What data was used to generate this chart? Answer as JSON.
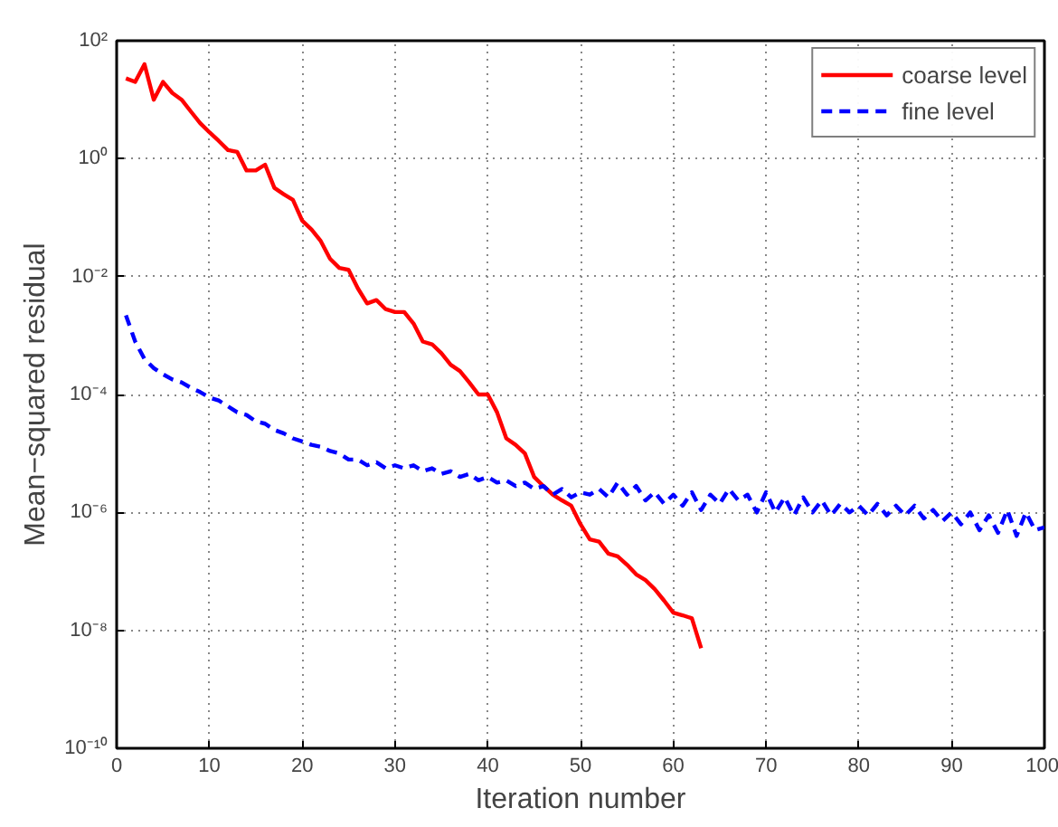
{
  "chart_data": {
    "type": "line",
    "xlabel": "Iteration number",
    "ylabel": "Mean−squared residual",
    "log": "y",
    "grid": true,
    "legend": "top right",
    "xlim": [
      0,
      100
    ],
    "xticks": [
      0,
      10,
      20,
      30,
      40,
      50,
      60,
      70,
      80,
      90,
      100
    ],
    "ylim": [
      1e-10,
      100
    ],
    "yticks": [
      {
        "value": 1e-10,
        "label": "10⁻¹⁰"
      },
      {
        "value": 1e-08,
        "label": "10⁻⁸"
      },
      {
        "value": 1e-06,
        "label": "10⁻⁶"
      },
      {
        "value": 0.0001,
        "label": "10⁻⁴"
      },
      {
        "value": 0.01,
        "label": "10⁻²"
      },
      {
        "value": 1,
        "label": "10⁰"
      },
      {
        "value": 100,
        "label": "10²"
      }
    ],
    "series": [
      {
        "name": "coarse level",
        "color": "#ff0000",
        "line_style": "solid",
        "x": [
          1,
          2,
          3,
          4,
          5,
          6,
          7,
          8,
          9,
          10,
          11,
          12,
          13,
          14,
          15,
          16,
          17,
          18,
          19,
          20,
          21,
          22,
          23,
          24,
          25,
          26,
          27,
          28,
          29,
          30,
          31,
          32,
          33,
          34,
          35,
          36,
          37,
          38,
          39,
          40,
          41,
          42,
          43,
          44,
          45,
          46,
          47,
          48,
          49,
          50,
          51,
          52,
          53,
          54,
          55,
          56,
          57,
          58,
          59,
          60,
          61,
          62,
          63
        ],
        "values": [
          23,
          20,
          40,
          10,
          20,
          13,
          10,
          6.3,
          4.0,
          2.8,
          2.0,
          1.4,
          1.3,
          0.63,
          0.63,
          0.79,
          0.32,
          0.25,
          0.2,
          0.089,
          0.063,
          0.04,
          0.02,
          0.014,
          0.013,
          0.0063,
          0.0035,
          0.004,
          0.0028,
          0.0025,
          0.0025,
          0.0016,
          0.00079,
          0.00071,
          0.0005,
          0.00032,
          0.00025,
          0.00016,
          0.0001,
          0.0001,
          5e-05,
          1.8e-05,
          1.4e-05,
          1e-05,
          4e-06,
          2.8e-06,
          2e-06,
          1.6e-06,
          1.3e-06,
          6.3e-07,
          3.5e-07,
          3.2e-07,
          2e-07,
          1.8e-07,
          1.3e-07,
          8.9e-08,
          7.1e-08,
          5e-08,
          3.2e-08,
          2e-08,
          1.8e-08,
          1.6e-08,
          5e-09
        ]
      },
      {
        "name": "fine level",
        "color": "#0000ff",
        "line_style": "dashed",
        "x": [
          1,
          2,
          3,
          4,
          5,
          6,
          7,
          8,
          9,
          10,
          11,
          12,
          13,
          14,
          15,
          16,
          17,
          18,
          19,
          20,
          21,
          22,
          23,
          24,
          25,
          26,
          27,
          28,
          29,
          30,
          31,
          32,
          33,
          34,
          35,
          36,
          37,
          38,
          39,
          40,
          41,
          42,
          43,
          44,
          45,
          46,
          47,
          48,
          49,
          50,
          51,
          52,
          53,
          54,
          55,
          56,
          57,
          58,
          59,
          60,
          61,
          62,
          63,
          64,
          65,
          66,
          67,
          68,
          69,
          70,
          71,
          72,
          73,
          74,
          75,
          76,
          77,
          78,
          79,
          80,
          81,
          82,
          83,
          84,
          85,
          86,
          87,
          88,
          89,
          90,
          91,
          92,
          93,
          94,
          95,
          96,
          97,
          98,
          99,
          100
        ],
        "values": [
          0.0022,
          0.00079,
          0.0004,
          0.00028,
          0.00022,
          0.00018,
          0.00016,
          0.00013,
          0.00011,
          8.9e-05,
          7.9e-05,
          6.3e-05,
          5e-05,
          4.5e-05,
          3.5e-05,
          3.2e-05,
          2.5e-05,
          2.2e-05,
          1.8e-05,
          1.6e-05,
          1.4e-05,
          1.3e-05,
          1.1e-05,
          1e-05,
          7.9e-06,
          7.9e-06,
          6.3e-06,
          7.1e-06,
          5.6e-06,
          6.3e-06,
          5.6e-06,
          6.3e-06,
          5e-06,
          5.6e-06,
          4.5e-06,
          5e-06,
          4e-06,
          4.5e-06,
          3.5e-06,
          4e-06,
          3.2e-06,
          3.5e-06,
          2.8e-06,
          3.2e-06,
          2.5e-06,
          2.8e-06,
          2e-06,
          2.5e-06,
          1.8e-06,
          2.2e-06,
          2e-06,
          2.5e-06,
          1.8e-06,
          3.2e-06,
          2e-06,
          2.8e-06,
          1.6e-06,
          2.2e-06,
          1.4e-06,
          2e-06,
          1.3e-06,
          2.2e-06,
          1.1e-06,
          2e-06,
          1.4e-06,
          2.5e-06,
          1.6e-06,
          2e-06,
          1e-06,
          2.2e-06,
          1e-06,
          1.8e-06,
          8.9e-07,
          1.8e-06,
          1e-06,
          1.6e-06,
          8.9e-07,
          1.4e-06,
          1e-06,
          1.3e-06,
          8.9e-07,
          1.4e-06,
          8.9e-07,
          1.3e-06,
          8.9e-07,
          1.3e-06,
          7.9e-07,
          1.1e-06,
          7.1e-07,
          1e-06,
          6.3e-07,
          1e-06,
          5e-07,
          8.9e-07,
          4.5e-07,
          1.1e-06,
          4e-07,
          1e-06,
          5e-07,
          5.6e-07
        ]
      }
    ]
  }
}
